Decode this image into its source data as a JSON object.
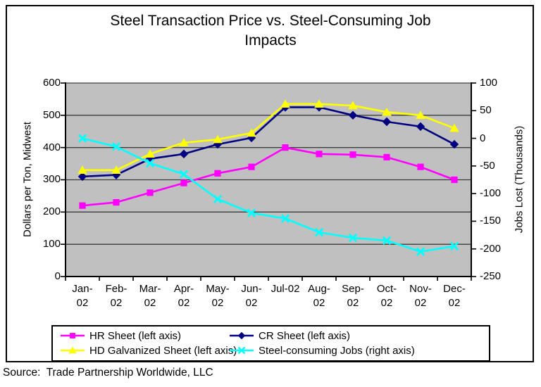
{
  "page": {
    "source_note": "Source:  Trade Partnership Worldwide, LLC"
  },
  "chart_data": {
    "type": "line",
    "title": "Steel Transaction Price vs. Steel-Consuming Job Impacts",
    "title_display": "Steel Transaction Price vs. Steel-Consuming Job\nImpacts",
    "categories": [
      "Jan-02",
      "Feb-02",
      "Mar-02",
      "Apr-02",
      "May-02",
      "Jun-02",
      "Jul-02",
      "Aug-02",
      "Sep-02",
      "Oct-02",
      "Nov-02",
      "Dec-02"
    ],
    "x_labels_display": [
      "Jan-\n02",
      "Feb-\n02",
      "Mar-\n02",
      "Apr-\n02",
      "May-\n02",
      "Jun-\n02",
      "Jul-02",
      "Aug-\n02",
      "Sep-\n02",
      "Oct-\n02",
      "Nov-\n02",
      "Dec-\n02"
    ],
    "yaxis_left": {
      "label": "Dollars per Ton, Midwest",
      "min": 0,
      "max": 600,
      "tick_step": 100,
      "tick_labels": [
        "600",
        "500",
        "400",
        "300",
        "200",
        "100",
        "0"
      ]
    },
    "yaxis_right": {
      "label": "Jobs Lost (Thousands)",
      "min": -250,
      "max": 100,
      "tick_step": 50,
      "tick_labels": [
        "100",
        "50",
        "0",
        "-50",
        "-100",
        "-150",
        "-200",
        "-250"
      ]
    },
    "series": [
      {
        "name": "HR Sheet (left axis)",
        "axis": "left",
        "color": "#ff00ff",
        "marker": "square",
        "values": [
          220,
          230,
          260,
          290,
          320,
          340,
          400,
          380,
          378,
          370,
          340,
          300
        ]
      },
      {
        "name": "CR Sheet (left axis)",
        "axis": "left",
        "color": "#000080",
        "marker": "diamond",
        "values": [
          310,
          315,
          365,
          380,
          410,
          430,
          525,
          525,
          500,
          480,
          465,
          410
        ]
      },
      {
        "name": "HD Galvanized Sheet (left axis)",
        "axis": "left",
        "color": "#ffff00",
        "marker": "triangle",
        "values": [
          330,
          330,
          380,
          415,
          425,
          445,
          535,
          535,
          530,
          510,
          500,
          460
        ]
      },
      {
        "name": "Steel-consuming Jobs (right axis)",
        "axis": "right",
        "color": "#00ffff",
        "marker": "x",
        "values": [
          0,
          -15,
          -45,
          -65,
          -110,
          -135,
          -145,
          -170,
          -180,
          -185,
          -205,
          -195
        ]
      }
    ],
    "plot_bg": "#c0c0c0",
    "grid": true,
    "legend_position": "bottom"
  }
}
